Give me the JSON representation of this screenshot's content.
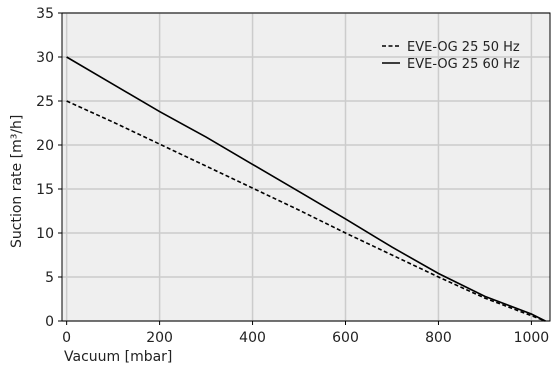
{
  "chart_data": {
    "type": "line",
    "xlabel": "Vacuum [mbar]",
    "ylabel": "Suction rate [m³/h]",
    "xlim": [
      -10,
      1040
    ],
    "ylim": [
      0,
      35
    ],
    "xticks": [
      0,
      200,
      400,
      600,
      800,
      1000
    ],
    "yticks": [
      0,
      5,
      10,
      15,
      20,
      25,
      30,
      35
    ],
    "grid": true,
    "legend_position": "top-right",
    "colors": {
      "plot_background": "#efefef",
      "grid": "#cccccc",
      "line": "#000000"
    },
    "series": [
      {
        "name": "EVE-OG 25 50 Hz",
        "style": "dashed",
        "x": [
          0,
          100,
          200,
          300,
          400,
          500,
          600,
          700,
          800,
          900,
          1000,
          1030
        ],
        "y": [
          25.0,
          22.6,
          20.1,
          17.6,
          15.1,
          12.6,
          10.0,
          7.5,
          5.0,
          2.6,
          0.6,
          0.0
        ]
      },
      {
        "name": "EVE-OG 25 60 Hz",
        "style": "solid",
        "x": [
          0,
          100,
          200,
          300,
          400,
          500,
          600,
          700,
          800,
          900,
          1000,
          1030
        ],
        "y": [
          30.0,
          26.9,
          23.8,
          20.9,
          17.8,
          14.7,
          11.6,
          8.4,
          5.4,
          2.8,
          0.8,
          0.0
        ]
      }
    ]
  }
}
